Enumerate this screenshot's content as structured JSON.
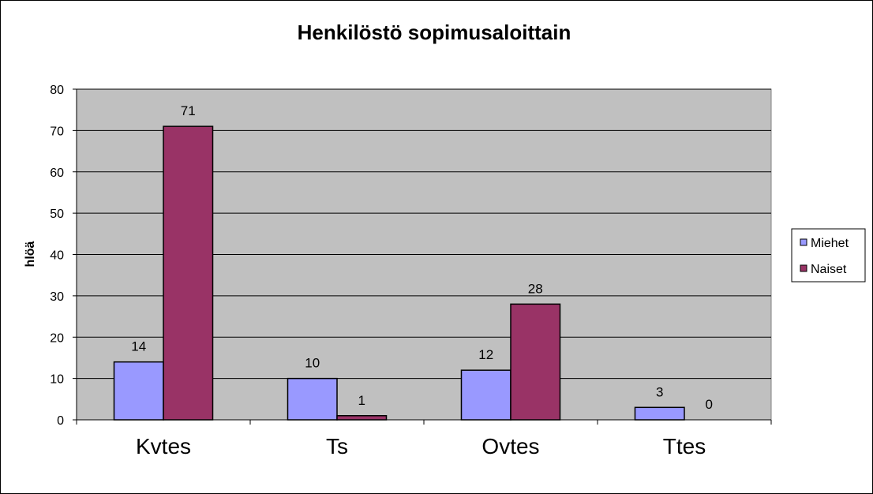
{
  "chart_data": {
    "type": "bar",
    "title": "Henkilöstö sopimusaloittain",
    "xlabel": "",
    "ylabel": "hlöä",
    "categories": [
      "Kvtes",
      "Ts",
      "Ovtes",
      "Ttes"
    ],
    "series": [
      {
        "name": "Miehet",
        "values": [
          14,
          10,
          12,
          3
        ],
        "color": "#9999FF"
      },
      {
        "name": "Naiset",
        "values": [
          71,
          1,
          28,
          0
        ],
        "color": "#993366"
      }
    ],
    "ylim": [
      0,
      80
    ],
    "yticks": [
      0,
      10,
      20,
      30,
      40,
      50,
      60,
      70,
      80
    ],
    "grid": true,
    "plot_background": "#C0C0C0",
    "legend_position": "right",
    "data_labels": true
  }
}
